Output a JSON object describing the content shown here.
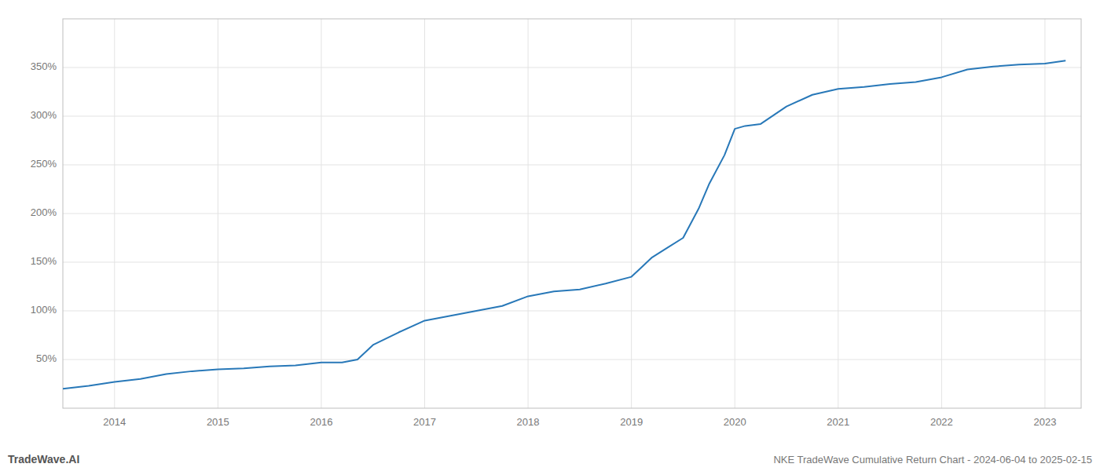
{
  "chart_data": {
    "type": "line",
    "title": "NKE TradeWave Cumulative Return Chart - 2024-06-04 to 2025-02-15",
    "annotations": [
      "TradeWave.AI"
    ],
    "color": "#2878b8",
    "grid": true,
    "x": [
      2013.5,
      2013.75,
      2014.0,
      2014.25,
      2014.5,
      2014.75,
      2015.0,
      2015.25,
      2015.5,
      2015.75,
      2016.0,
      2016.1,
      2016.2,
      2016.35,
      2016.5,
      2016.75,
      2017.0,
      2017.25,
      2017.5,
      2017.75,
      2018.0,
      2018.25,
      2018.5,
      2018.75,
      2019.0,
      2019.1,
      2019.2,
      2019.35,
      2019.5,
      2019.65,
      2019.75,
      2019.9,
      2020.0,
      2020.1,
      2020.25,
      2020.5,
      2020.75,
      2021.0,
      2021.25,
      2021.5,
      2021.75,
      2022.0,
      2022.25,
      2022.5,
      2022.75,
      2023.0,
      2023.2
    ],
    "values": [
      20,
      23,
      27,
      30,
      35,
      38,
      40,
      41,
      43,
      44,
      47,
      47,
      47,
      50,
      65,
      78,
      90,
      95,
      100,
      105,
      115,
      120,
      122,
      128,
      135,
      145,
      155,
      165,
      175,
      205,
      230,
      260,
      287,
      290,
      292,
      310,
      322,
      328,
      330,
      333,
      335,
      340,
      348,
      351,
      353,
      354,
      357
    ],
    "xlim": [
      2013.5,
      2023.35
    ],
    "ylim": [
      0,
      400
    ],
    "xticks": [
      2014,
      2015,
      2016,
      2017,
      2018,
      2019,
      2020,
      2021,
      2022,
      2023
    ],
    "yticks": [
      {
        "value": 50,
        "label": "50%"
      },
      {
        "value": 100,
        "label": "100%"
      },
      {
        "value": 150,
        "label": "150%"
      },
      {
        "value": 200,
        "label": "200%"
      },
      {
        "value": 250,
        "label": "250%"
      },
      {
        "value": 300,
        "label": "300%"
      },
      {
        "value": 350,
        "label": "350%"
      }
    ]
  }
}
